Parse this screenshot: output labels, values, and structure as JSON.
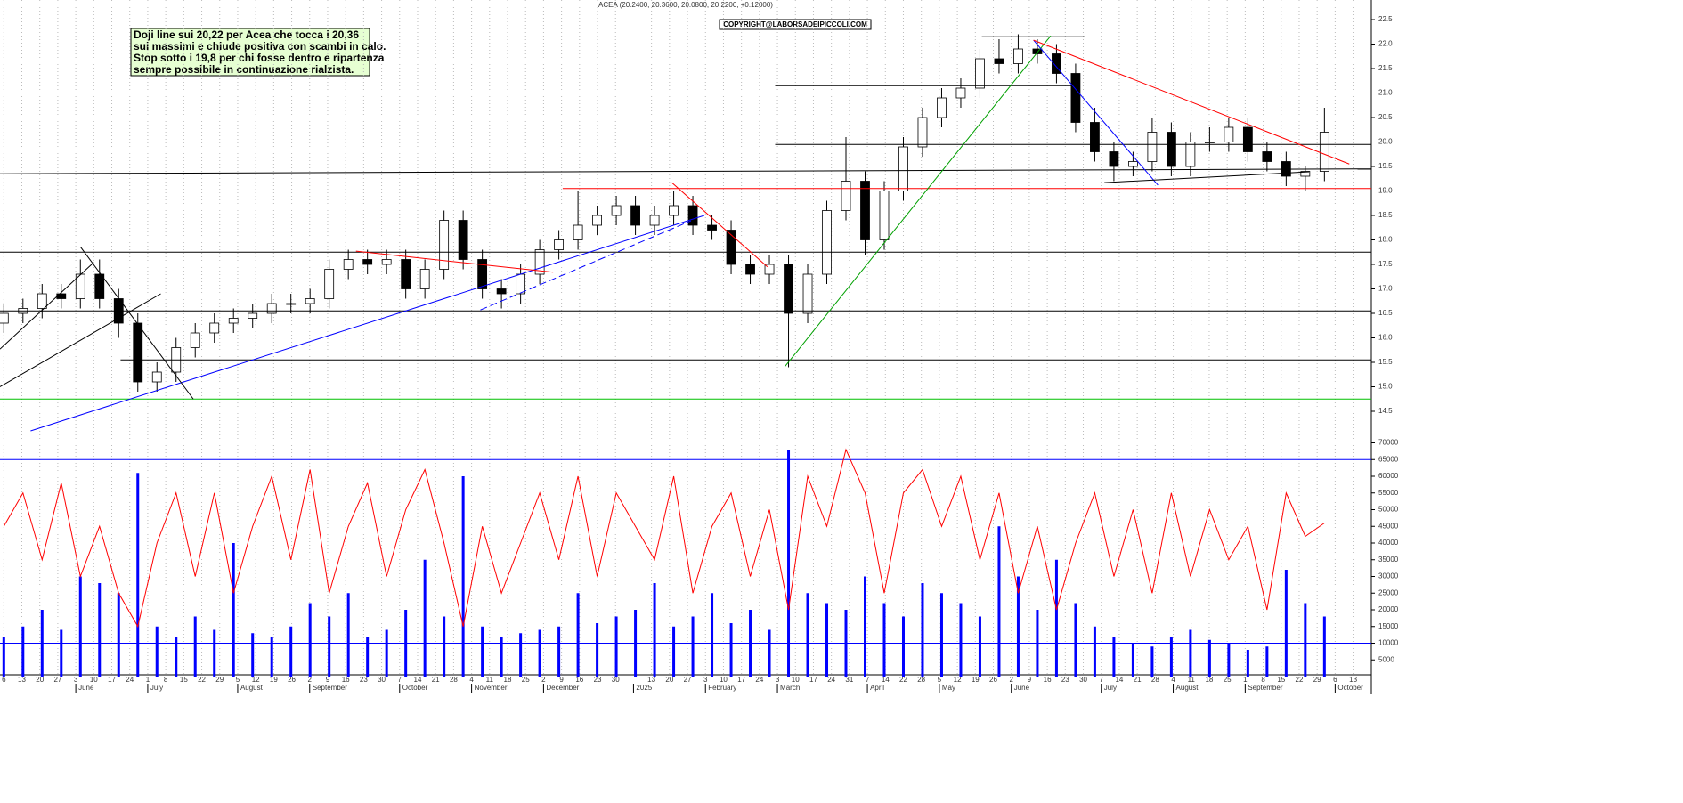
{
  "chart_data": [
    {
      "type": "candlestick",
      "title": "ACEA (20.2400, 20.3600, 20.0800, 20.2200, +0.12000)",
      "copyright": "COPYRIGHT@LABORSADEIPICCOLI.COM",
      "annotation": [
        "Doji line sui 20,22 per Acea che tocca i 20,36",
        "sui massimi e chiude positiva con scambi in calo.",
        "Stop sotto i 19,8 per chi fosse dentro e ripartenza",
        "sempre possibile in continuazione rialzista."
      ],
      "xlim": [
        -0.2,
        71.45
      ],
      "ylim": [
        14.3,
        22.8
      ],
      "yticks": [
        14.5,
        {
          "value": 15,
          "label": "15.0"
        },
        15.5,
        {
          "value": 16,
          "label": "16.0"
        },
        16.5,
        {
          "value": 17,
          "label": "17.0"
        },
        17.5,
        {
          "value": 18,
          "label": "18.0"
        },
        18.5,
        {
          "value": 19,
          "label": "19.0"
        },
        19.5,
        {
          "value": 20,
          "label": "20.0"
        },
        20.5,
        {
          "value": 21,
          "label": "21.0"
        },
        21.5,
        {
          "value": 22,
          "label": "22.0"
        },
        22.5
      ],
      "xticks": [
        {
          "value": 0,
          "label": "6"
        },
        {
          "value": 0.94,
          "label": "13"
        },
        {
          "value": 1.88,
          "label": "20"
        },
        {
          "value": 2.82,
          "label": "27"
        },
        {
          "value": 3.76,
          "label": "3"
        },
        {
          "value": 4.7,
          "label": "10"
        },
        {
          "value": 5.64,
          "label": "17"
        },
        {
          "value": 6.58,
          "label": "24"
        },
        {
          "value": 7.52,
          "label": "1"
        },
        {
          "value": 8.46,
          "label": "8"
        },
        {
          "value": 9.4,
          "label": "15"
        },
        {
          "value": 10.34,
          "label": "22"
        },
        {
          "value": 11.28,
          "label": "29"
        },
        {
          "value": 12.22,
          "label": "5"
        },
        {
          "value": 13.16,
          "label": "12"
        },
        {
          "value": 14.1,
          "label": "19"
        },
        {
          "value": 15.04,
          "label": "26"
        },
        {
          "value": 15.98,
          "label": "2"
        },
        {
          "value": 16.92,
          "label": "9"
        },
        {
          "value": 17.86,
          "label": "16"
        },
        {
          "value": 18.8,
          "label": "23"
        },
        {
          "value": 19.74,
          "label": "30"
        },
        {
          "value": 20.68,
          "label": "7"
        },
        {
          "value": 21.62,
          "label": "14"
        },
        {
          "value": 22.56,
          "label": "21"
        },
        {
          "value": 23.5,
          "label": "28"
        },
        {
          "value": 24.44,
          "label": "4"
        },
        {
          "value": 25.38,
          "label": "11"
        },
        {
          "value": 26.32,
          "label": "18"
        },
        {
          "value": 27.26,
          "label": "25"
        },
        {
          "value": 28.2,
          "label": "2"
        },
        {
          "value": 29.14,
          "label": "9"
        },
        {
          "value": 30.08,
          "label": "16"
        },
        {
          "value": 31.02,
          "label": "23"
        },
        {
          "value": 31.96,
          "label": "30"
        },
        {
          "value": 33.84,
          "label": "13"
        },
        {
          "value": 34.78,
          "label": "20"
        },
        {
          "value": 35.72,
          "label": "27"
        },
        {
          "value": 36.66,
          "label": "3"
        },
        {
          "value": 37.6,
          "label": "10"
        },
        {
          "value": 38.54,
          "label": "17"
        },
        {
          "value": 39.48,
          "label": "24"
        },
        {
          "value": 40.42,
          "label": "3"
        },
        {
          "value": 41.36,
          "label": "10"
        },
        {
          "value": 42.3,
          "label": "17"
        },
        {
          "value": 43.24,
          "label": "24"
        },
        {
          "value": 44.18,
          "label": "31"
        },
        {
          "value": 45.12,
          "label": "7"
        },
        {
          "value": 46.06,
          "label": "14"
        },
        {
          "value": 47,
          "label": "22"
        },
        {
          "value": 47.94,
          "label": "28"
        },
        {
          "value": 48.88,
          "label": "5"
        },
        {
          "value": 49.82,
          "label": "12"
        },
        {
          "value": 50.76,
          "label": "19"
        },
        {
          "value": 51.7,
          "label": "26"
        },
        {
          "value": 52.64,
          "label": "2"
        },
        {
          "value": 53.58,
          "label": "9"
        },
        {
          "value": 54.52,
          "label": "16"
        },
        {
          "value": 55.46,
          "label": "23"
        },
        {
          "value": 56.4,
          "label": "30"
        },
        {
          "value": 57.34,
          "label": "7"
        },
        {
          "value": 58.28,
          "label": "14"
        },
        {
          "value": 59.22,
          "label": "21"
        },
        {
          "value": 60.16,
          "label": "28"
        },
        {
          "value": 61.1,
          "label": "4"
        },
        {
          "value": 62.04,
          "label": "11"
        },
        {
          "value": 62.98,
          "label": "18"
        },
        {
          "value": 63.92,
          "label": "25"
        },
        {
          "value": 64.86,
          "label": "1"
        },
        {
          "value": 65.8,
          "label": "8"
        },
        {
          "value": 66.74,
          "label": "15"
        },
        {
          "value": 67.68,
          "label": "22"
        },
        {
          "value": 68.62,
          "label": "29"
        },
        {
          "value": 69.56,
          "label": "6"
        },
        {
          "value": 70.5,
          "label": "13"
        }
      ],
      "months": [
        {
          "value": 3.76,
          "label": "June"
        },
        {
          "value": 7.52,
          "label": "July"
        },
        {
          "value": 12.22,
          "label": "August"
        },
        {
          "value": 15.98,
          "label": "September"
        },
        {
          "value": 20.68,
          "label": "October"
        },
        {
          "value": 24.44,
          "label": "November"
        },
        {
          "value": 28.2,
          "label": "December"
        },
        {
          "value": 32.9,
          "label": "2025"
        },
        {
          "value": 36.66,
          "label": "February"
        },
        {
          "value": 40.42,
          "label": "March"
        },
        {
          "value": 45.12,
          "label": "April"
        },
        {
          "value": 48.88,
          "label": "May"
        },
        {
          "value": 52.64,
          "label": "June"
        },
        {
          "value": 57.34,
          "label": "July"
        },
        {
          "value": 61.1,
          "label": "August"
        },
        {
          "value": 64.86,
          "label": "September"
        },
        {
          "value": 69.56,
          "label": "October"
        }
      ],
      "open": [
        16.3,
        16.5,
        16.6,
        16.9,
        16.8,
        17.3,
        16.8,
        16.3,
        15.1,
        15.3,
        15.8,
        16.1,
        16.3,
        16.4,
        16.5,
        16.7,
        16.7,
        16.8,
        17.4,
        17.6,
        17.5,
        17.6,
        17.0,
        17.4,
        18.4,
        17.6,
        17.0,
        16.9,
        17.3,
        17.8,
        18.0,
        18.3,
        18.5,
        18.7,
        18.3,
        18.5,
        18.7,
        18.3,
        18.2,
        17.5,
        17.3,
        17.5,
        16.5,
        17.3,
        18.6,
        19.2,
        18.0,
        19.0,
        19.9,
        20.5,
        20.9,
        21.1,
        21.7,
        21.6,
        21.9,
        21.8,
        21.4,
        20.4,
        19.8,
        19.5,
        19.6,
        20.2,
        19.5,
        20.0,
        20.0,
        20.3,
        19.8,
        19.6,
        19.3,
        19.4
      ],
      "high": [
        16.7,
        16.8,
        17.1,
        17.1,
        17.6,
        17.6,
        17.0,
        16.5,
        15.5,
        16.0,
        16.3,
        16.5,
        16.6,
        16.7,
        16.9,
        16.9,
        17.0,
        17.6,
        17.8,
        17.8,
        17.8,
        17.8,
        17.6,
        18.6,
        18.6,
        17.8,
        17.2,
        17.5,
        18.0,
        18.2,
        19.0,
        18.7,
        18.9,
        18.9,
        18.7,
        19.0,
        18.9,
        18.5,
        18.4,
        17.7,
        17.7,
        17.7,
        17.5,
        18.8,
        20.1,
        19.4,
        19.2,
        20.1,
        20.7,
        21.1,
        21.3,
        21.9,
        22.1,
        22.2,
        22.1,
        22.0,
        21.6,
        20.7,
        20.0,
        19.8,
        20.5,
        20.4,
        20.2,
        20.3,
        20.5,
        20.5,
        20.0,
        19.8,
        19.5,
        20.7
      ],
      "low": [
        16.1,
        16.3,
        16.4,
        16.6,
        16.6,
        16.6,
        16.0,
        14.9,
        14.9,
        15.1,
        15.6,
        15.9,
        16.1,
        16.2,
        16.3,
        16.5,
        16.5,
        16.6,
        17.2,
        17.3,
        17.3,
        16.8,
        16.8,
        17.2,
        17.4,
        16.8,
        16.6,
        16.7,
        17.1,
        17.6,
        17.8,
        18.1,
        18.3,
        18.1,
        18.1,
        18.3,
        18.1,
        18.0,
        17.3,
        17.1,
        17.1,
        15.4,
        16.3,
        17.1,
        18.4,
        17.7,
        17.8,
        18.8,
        19.7,
        20.3,
        20.7,
        20.9,
        21.4,
        21.4,
        21.6,
        21.2,
        20.2,
        19.6,
        19.2,
        19.3,
        19.4,
        19.3,
        19.3,
        19.8,
        19.8,
        19.6,
        19.4,
        19.1,
        19.0,
        19.2
      ],
      "close": [
        16.5,
        16.6,
        16.9,
        16.8,
        17.3,
        16.8,
        16.3,
        15.1,
        15.3,
        15.8,
        16.1,
        16.3,
        16.4,
        16.5,
        16.7,
        16.7,
        16.8,
        17.4,
        17.6,
        17.5,
        17.6,
        17.0,
        17.4,
        18.4,
        17.6,
        17.0,
        16.9,
        17.3,
        17.8,
        18.0,
        18.3,
        18.5,
        18.7,
        18.3,
        18.5,
        18.7,
        18.3,
        18.2,
        17.5,
        17.3,
        17.5,
        16.5,
        17.3,
        18.6,
        19.2,
        18.0,
        19.0,
        19.9,
        20.5,
        20.9,
        21.1,
        21.7,
        21.6,
        21.9,
        21.8,
        21.4,
        20.4,
        19.8,
        19.5,
        19.6,
        20.2,
        19.5,
        20.0,
        20.0,
        20.3,
        19.8,
        19.6,
        19.3,
        19.4,
        20.2
      ],
      "lines": [
        {
          "x": [
            -0.2,
            71.45
          ],
          "y": [
            14.75,
            14.75
          ],
          "color": "#00c000"
        },
        {
          "x": [
            6.1,
            71.45
          ],
          "y": [
            15.55,
            15.55
          ],
          "color": "#000000"
        },
        {
          "x": [
            -0.2,
            71.45
          ],
          "y": [
            16.55,
            16.55
          ],
          "color": "#000000"
        },
        {
          "x": [
            -0.2,
            71.45
          ],
          "y": [
            17.75,
            17.75
          ],
          "color": "#000000"
        },
        {
          "x": [
            29.2,
            71.45
          ],
          "y": [
            19.05,
            19.05
          ],
          "color": "#ff0000"
        },
        {
          "x": [
            -0.2,
            71.45
          ],
          "y": [
            19.35,
            19.45
          ],
          "color": "#000000"
        },
        {
          "x": [
            40.3,
            71.45
          ],
          "y": [
            19.95,
            19.95
          ],
          "color": "#000000"
        },
        {
          "x": [
            40.3,
            56.2
          ],
          "y": [
            21.15,
            21.15
          ],
          "color": "#000000"
        },
        {
          "x": [
            51.1,
            56.5
          ],
          "y": [
            22.15,
            22.15
          ],
          "color": "#000000"
        },
        {
          "x": [
            1.4,
            36.6
          ],
          "y": [
            14.1,
            18.5
          ],
          "color": "#0000ff"
        },
        {
          "x": [
            24.9,
            35.9
          ],
          "y": [
            16.57,
            18.39
          ],
          "color": "#0000ff",
          "dash": true
        },
        {
          "x": [
            40.8,
            54.7
          ],
          "y": [
            15.41,
            22.17
          ],
          "color": "#00a000"
        },
        {
          "x": [
            53.8,
            60.3
          ],
          "y": [
            22.08,
            19.12
          ],
          "color": "#0000ff"
        },
        {
          "x": [
            53.8,
            70.3
          ],
          "y": [
            22.08,
            19.55
          ],
          "color": "#ff0000"
        },
        {
          "x": [
            34.9,
            39.9
          ],
          "y": [
            19.17,
            17.45
          ],
          "color": "#ff0000"
        },
        {
          "x": [
            18.4,
            28.7
          ],
          "y": [
            17.77,
            17.34
          ],
          "color": "#ff0000"
        },
        {
          "x": [
            4.0,
            9.9
          ],
          "y": [
            17.86,
            14.75
          ],
          "color": "#000000"
        },
        {
          "x": [
            -0.2,
            8.2
          ],
          "y": [
            15.0,
            16.9
          ],
          "color": "#000000"
        },
        {
          "x": [
            -0.2,
            4.7
          ],
          "y": [
            15.77,
            17.54
          ],
          "color": "#000000"
        },
        {
          "x": [
            57.5,
            68.2
          ],
          "y": [
            19.17,
            19.39
          ],
          "color": "#000000"
        }
      ]
    },
    {
      "type": "volume",
      "ylim": [
        0,
        72000
      ],
      "yticks": [
        5000,
        10000,
        15000,
        20000,
        25000,
        30000,
        35000,
        40000,
        45000,
        50000,
        55000,
        60000,
        65000,
        70000
      ],
      "levels": [
        65000,
        10000
      ],
      "level_color": "#0000ff",
      "bars": {
        "color": "#0000ff",
        "values": [
          12000,
          15000,
          20000,
          14000,
          30000,
          28000,
          25000,
          61000,
          15000,
          12000,
          18000,
          14000,
          40000,
          13000,
          12000,
          15000,
          22000,
          18000,
          25000,
          12000,
          14000,
          20000,
          35000,
          18000,
          60000,
          15000,
          12000,
          13000,
          14000,
          15000,
          25000,
          16000,
          18000,
          20000,
          28000,
          15000,
          18000,
          25000,
          16000,
          20000,
          14000,
          68000,
          25000,
          22000,
          20000,
          30000,
          22000,
          18000,
          28000,
          25000,
          22000,
          18000,
          45000,
          30000,
          20000,
          35000,
          22000,
          15000,
          12000,
          10000,
          9000,
          12000,
          14000,
          11000,
          10000,
          8000,
          9000,
          32000,
          22000,
          18000
        ]
      },
      "line": {
        "color": "#ff0000",
        "values": [
          45000,
          55000,
          35000,
          58000,
          30000,
          45000,
          25000,
          15000,
          40000,
          55000,
          30000,
          55000,
          25000,
          45000,
          60000,
          35000,
          62000,
          25000,
          45000,
          58000,
          30000,
          50000,
          62000,
          40000,
          15000,
          45000,
          25000,
          40000,
          55000,
          35000,
          60000,
          30000,
          55000,
          45000,
          35000,
          60000,
          25000,
          45000,
          55000,
          30000,
          50000,
          20000,
          60000,
          45000,
          68000,
          55000,
          25000,
          55000,
          62000,
          45000,
          60000,
          35000,
          55000,
          25000,
          45000,
          20000,
          40000,
          55000,
          30000,
          50000,
          25000,
          55000,
          30000,
          50000,
          35000,
          45000,
          20000,
          55000,
          42000,
          46000
        ]
      }
    }
  ]
}
